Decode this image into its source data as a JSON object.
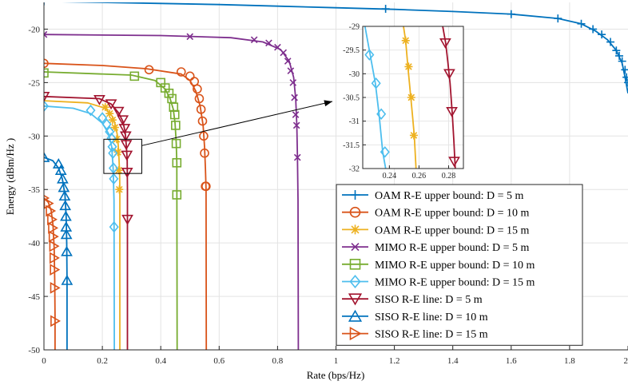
{
  "chart_data": {
    "type": "line",
    "title": "",
    "xlabel": "Rate (bps/Hz)",
    "ylabel": "Energy (dBm/Hz )",
    "xlim": [
      0,
      2
    ],
    "ylim": [
      -50,
      -17.5
    ],
    "x_ticks": [
      0,
      0.2,
      0.4,
      0.6,
      0.8,
      1,
      1.2,
      1.4,
      1.6,
      1.8,
      2
    ],
    "x_tick_labels": [
      "0",
      "0.2",
      "0.4",
      "0.6",
      "0.8",
      "1",
      "1.2",
      "1.4",
      "1.6",
      "1.8",
      "2"
    ],
    "y_ticks": [
      -20,
      -25,
      -30,
      -35,
      -40,
      -45,
      -50
    ],
    "y_tick_labels": [
      "-20",
      "-25",
      "-30",
      "-35",
      "-40",
      "-45",
      "-50"
    ],
    "grid": true,
    "legend_position": "bottom-right",
    "series": [
      {
        "name": "OAM R-E upper bound: D = 5 m",
        "color": "#0072BD",
        "marker": "plus",
        "x": [
          0,
          0.2,
          0.4,
          0.6,
          0.8,
          1.0,
          1.2,
          1.4,
          1.6,
          1.76,
          1.84,
          1.89,
          1.93,
          1.96,
          1.98,
          1.99,
          2.0
        ],
        "y": [
          -17.4,
          -17.5,
          -17.6,
          -17.7,
          -17.85,
          -18.0,
          -18.15,
          -18.35,
          -18.6,
          -19.0,
          -19.5,
          -20.2,
          -21.0,
          -22.0,
          -23.2,
          -24.5,
          -26.0
        ],
        "marker_x": [
          0,
          1.17,
          1.6,
          1.76,
          1.84,
          1.88,
          1.91,
          1.94,
          1.96,
          1.97,
          1.98,
          1.99,
          1.995,
          2.0
        ],
        "marker_y": [
          -17.4,
          -18.1,
          -18.6,
          -19.0,
          -19.5,
          -20.0,
          -20.5,
          -21.2,
          -22.0,
          -22.5,
          -23.0,
          -23.8,
          -24.5,
          -25.0
        ]
      },
      {
        "name": "OAM R-E upper bound: D = 10 m",
        "color": "#D95319",
        "marker": "circle",
        "x": [
          0,
          0.2,
          0.35,
          0.47,
          0.5,
          0.52,
          0.535,
          0.545,
          0.55,
          0.553,
          0.555,
          0.556
        ],
        "y": [
          -23.2,
          -23.4,
          -23.7,
          -24.2,
          -24.8,
          -25.8,
          -27.2,
          -29.0,
          -31.0,
          -33.0,
          -35.0,
          -50
        ],
        "marker_x": [
          0,
          0.36,
          0.47,
          0.5,
          0.515,
          0.525,
          0.532,
          0.538,
          0.543,
          0.547,
          0.55,
          0.553,
          0.555
        ],
        "marker_y": [
          -23.2,
          -23.8,
          -24.0,
          -24.4,
          -24.9,
          -25.6,
          -26.5,
          -27.5,
          -28.6,
          -30.0,
          -31.6,
          -34.7,
          -34.7
        ]
      },
      {
        "name": "OAM R-E upper bound: D = 15 m",
        "color": "#EDB120",
        "marker": "star",
        "x": [
          0,
          0.15,
          0.21,
          0.235,
          0.245,
          0.252,
          0.256,
          0.259,
          0.26,
          0.26
        ],
        "y": [
          -26.7,
          -26.9,
          -27.4,
          -28.2,
          -29.0,
          -30.0,
          -31.5,
          -33.5,
          -35.0,
          -50
        ],
        "marker_x": [
          0.21,
          0.225,
          0.235,
          0.243,
          0.249,
          0.253,
          0.256,
          0.258
        ],
        "marker_y": [
          -27.3,
          -27.9,
          -28.5,
          -29.2,
          -30.3,
          -31.5,
          -33.2,
          -35.0
        ]
      },
      {
        "name": "MIMO R-E upper bound: D = 5 m",
        "color": "#7E2F8E",
        "marker": "x",
        "x": [
          0,
          0.4,
          0.64,
          0.75,
          0.81,
          0.84,
          0.855,
          0.862,
          0.866,
          0.868,
          0.87,
          0.871
        ],
        "y": [
          -20.5,
          -20.6,
          -20.8,
          -21.2,
          -21.9,
          -23.0,
          -24.5,
          -26.5,
          -29.0,
          -32.0,
          -36.0,
          -50
        ],
        "marker_x": [
          0,
          0.5,
          0.72,
          0.77,
          0.8,
          0.82,
          0.835,
          0.845,
          0.853,
          0.858,
          0.862,
          0.865,
          0.868
        ],
        "marker_y": [
          -20.5,
          -20.7,
          -21.0,
          -21.3,
          -21.7,
          -22.2,
          -23.0,
          -23.9,
          -25.0,
          -26.4,
          -28.0,
          -29.0,
          -32.0
        ]
      },
      {
        "name": "MIMO R-E upper bound: D = 10 m",
        "color": "#77AC30",
        "marker": "square",
        "x": [
          0,
          0.3,
          0.38,
          0.415,
          0.432,
          0.443,
          0.449,
          0.453,
          0.455,
          0.456
        ],
        "y": [
          -24.0,
          -24.3,
          -24.8,
          -25.6,
          -26.5,
          -27.5,
          -28.8,
          -30.7,
          -32.5,
          -50
        ],
        "marker_x": [
          0,
          0.31,
          0.4,
          0.415,
          0.428,
          0.438,
          0.444,
          0.448,
          0.451,
          0.453,
          0.455,
          0.455
        ],
        "marker_y": [
          -24.1,
          -24.4,
          -25.0,
          -25.5,
          -26.0,
          -26.5,
          -27.3,
          -28.0,
          -29.0,
          -30.7,
          -32.5,
          -35.5
        ]
      },
      {
        "name": "MIMO R-E upper bound: D = 15 m",
        "color": "#4DBEEE",
        "marker": "diamond",
        "x": [
          0,
          0.1,
          0.16,
          0.2,
          0.222,
          0.232,
          0.237,
          0.24,
          0.241
        ],
        "y": [
          -27.2,
          -27.4,
          -27.9,
          -28.8,
          -29.8,
          -31.0,
          -33.0,
          -36.0,
          -50
        ],
        "marker_x": [
          0,
          0.16,
          0.2,
          0.215,
          0.225,
          0.231,
          0.234,
          0.236,
          0.238,
          0.239,
          0.24
        ],
        "marker_y": [
          -27.2,
          -27.6,
          -28.3,
          -28.9,
          -29.6,
          -30.2,
          -31.0,
          -31.6,
          -33.0,
          -34.0,
          -38.5
        ]
      },
      {
        "name": "SISO R-E line: D = 5 m",
        "color": "#A2142F",
        "marker": "triangle-down",
        "x": [
          0,
          0.19,
          0.23,
          0.255,
          0.27,
          0.278,
          0.282,
          0.285,
          0.286,
          0.286
        ],
        "y": [
          -26.3,
          -26.5,
          -27.0,
          -27.8,
          -28.6,
          -29.6,
          -30.9,
          -32.2,
          -35.0,
          -50
        ],
        "marker_x": [
          0,
          0.19,
          0.23,
          0.255,
          0.27,
          0.276,
          0.28,
          0.282,
          0.284,
          0.285,
          0.286
        ],
        "marker_y": [
          -26.3,
          -26.6,
          -27.0,
          -27.7,
          -28.5,
          -29.3,
          -30.0,
          -30.8,
          -31.8,
          -33.4,
          -37.8
        ]
      },
      {
        "name": "SISO R-E line: D = 10 m",
        "color": "#0072BD",
        "marker": "triangle-up",
        "x": [
          0,
          0.03,
          0.05,
          0.063,
          0.072,
          0.076,
          0.078,
          0.079,
          0.079
        ],
        "y": [
          -32.0,
          -32.3,
          -33.0,
          -34.0,
          -35.5,
          -37.5,
          -40.0,
          -43.5,
          -50
        ],
        "marker_x": [
          0,
          0.05,
          0.058,
          0.064,
          0.068,
          0.071,
          0.073,
          0.075,
          0.076,
          0.077,
          0.078,
          0.079
        ],
        "marker_y": [
          -32.0,
          -32.6,
          -33.2,
          -34.0,
          -34.8,
          -35.6,
          -36.5,
          -37.5,
          -38.5,
          -39.2,
          -40.8,
          -43.5
        ]
      },
      {
        "name": "SISO R-E line: D = 15 m",
        "color": "#D95319",
        "marker": "triangle-right",
        "x": [
          0,
          0.015,
          0.025,
          0.031,
          0.035,
          0.037,
          0.038,
          0.038
        ],
        "y": [
          -35.8,
          -36.2,
          -37.0,
          -38.3,
          -40.5,
          -43.5,
          -47.0,
          -50
        ],
        "marker_x": [
          0,
          0.015,
          0.022,
          0.027,
          0.03,
          0.032,
          0.034,
          0.035,
          0.036,
          0.037,
          0.038
        ],
        "marker_y": [
          -35.8,
          -36.3,
          -37.0,
          -37.8,
          -38.6,
          -39.4,
          -40.3,
          -41.4,
          -42.5,
          -44.2,
          -47.3
        ]
      }
    ],
    "inset": {
      "xlim": [
        0.222,
        0.29
      ],
      "ylim": [
        -32,
        -29
      ],
      "x_ticks": [
        0.24,
        0.26,
        0.28
      ],
      "x_tick_labels": [
        "0.24",
        "0.26",
        "0.28"
      ],
      "y_ticks": [
        -29,
        -29.5,
        -30,
        -30.5,
        -31,
        -31.5,
        -32
      ],
      "y_tick_labels": [
        "-29",
        "-29.5",
        "-30",
        "-30.5",
        "-31",
        "-31.5",
        "-32"
      ],
      "zoom_region": {
        "x": [
          0.205,
          0.335
        ],
        "y": [
          -33.5,
          -30.3
        ]
      },
      "series": [
        {
          "ref": 5,
          "x": [
            0.2235,
            0.227,
            0.2305,
            0.233,
            0.2355,
            0.2375,
            0.2385
          ],
          "y": [
            -29.0,
            -29.6,
            -30.2,
            -30.85,
            -31.65,
            -32.0,
            -32.2
          ],
          "marker_x": [
            0.2265,
            0.231,
            0.2345,
            0.237
          ],
          "marker_y": [
            -29.6,
            -30.2,
            -30.85,
            -31.65
          ]
        },
        {
          "ref": 2,
          "x": [
            0.2495,
            0.251,
            0.2525,
            0.254,
            0.2555,
            0.2568,
            0.258
          ],
          "y": [
            -29.0,
            -29.3,
            -29.85,
            -30.35,
            -30.85,
            -31.3,
            -32.0
          ],
          "marker_x": [
            0.251,
            0.253,
            0.2548,
            0.2565
          ],
          "marker_y": [
            -29.3,
            -29.85,
            -30.5,
            -31.3
          ]
        },
        {
          "ref": 6,
          "x": [
            0.276,
            0.278,
            0.2795,
            0.281,
            0.2825,
            0.2835,
            0.2845
          ],
          "y": [
            -29.0,
            -29.35,
            -29.75,
            -30.2,
            -30.85,
            -31.4,
            -32.0
          ],
          "marker_x": [
            0.2778,
            0.2805,
            0.2822,
            0.2838
          ],
          "marker_y": [
            -29.35,
            -30.0,
            -30.8,
            -31.85
          ]
        }
      ]
    }
  }
}
